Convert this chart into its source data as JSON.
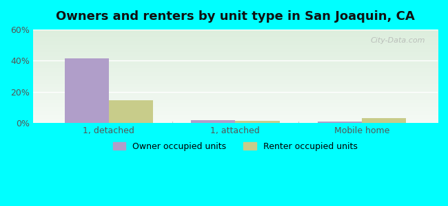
{
  "title": "Owners and renters by unit type in San Joaquin, CA",
  "categories": [
    "1, detached",
    "1, attached",
    "Mobile home"
  ],
  "owner_values": [
    41.5,
    1.8,
    1.2
  ],
  "renter_values": [
    14.5,
    1.6,
    3.2
  ],
  "owner_color": "#b09ec9",
  "renter_color": "#c8cc8a",
  "ylim": [
    0,
    60
  ],
  "yticks": [
    0,
    20,
    40,
    60
  ],
  "yticklabels": [
    "0%",
    "20%",
    "40%",
    "60%"
  ],
  "background_color": "#00ffff",
  "plot_bg_top": "#e8f5e9",
  "plot_bg_bottom": "#f0f8ee",
  "bar_width": 0.35,
  "legend_owner": "Owner occupied units",
  "legend_renter": "Renter occupied units",
  "watermark": "City-Data.com"
}
